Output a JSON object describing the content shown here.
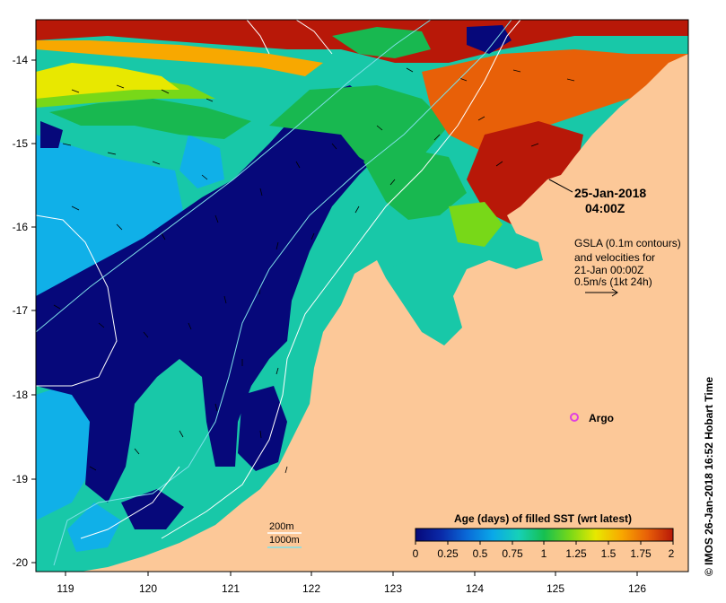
{
  "map": {
    "timestamp_date": "25-Jan-2018",
    "timestamp_time": "04:00Z",
    "gsla_note": [
      "GSLA (0.1m contours)",
      "and velocities for",
      "21-Jan 00:00Z",
      "0.5m/s (1kt 24h)"
    ],
    "argo_label": "Argo",
    "contour_legend": {
      "depth_200": "200m",
      "depth_1000": "1000m",
      "color_200": "#ffffff",
      "color_1000": "#7fe0e8"
    },
    "credit": "© IMOS 26-Jan-2018 16:52 Hobart Time",
    "lon_ticks": [
      "119",
      "120",
      "121",
      "122",
      "123",
      "124",
      "125",
      "126"
    ],
    "lat_ticks": [
      "-14",
      "-15",
      "-16",
      "-17",
      "-18",
      "-19",
      "-20"
    ],
    "land_color": "#fcc898",
    "argo_color": "#e040e0"
  },
  "colorbar": {
    "title": "Age (days) of filled SST (wrt latest)",
    "tick_labels": [
      "0",
      "0.25",
      "0.5",
      "0.75",
      "1",
      "1.25",
      "1.5",
      "1.75",
      "2"
    ],
    "colors": [
      "#06087a",
      "#0a2aa8",
      "#0a6ad8",
      "#0aa8e8",
      "#16d0b8",
      "#16c050",
      "#78d818",
      "#e8e800",
      "#f8a800",
      "#e86008",
      "#b81808"
    ]
  }
}
